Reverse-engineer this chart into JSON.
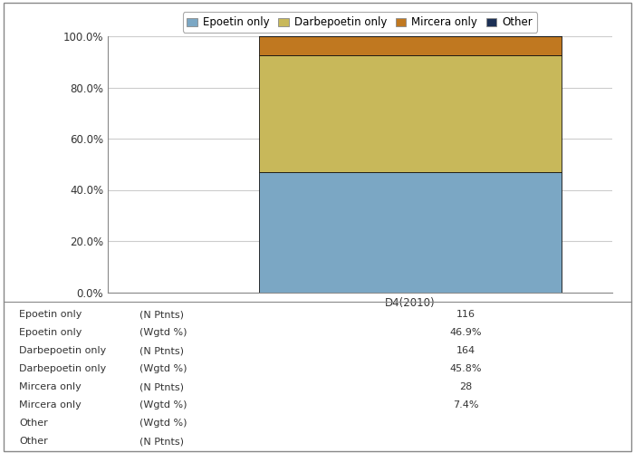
{
  "categories": [
    "D4(2010)"
  ],
  "series": [
    {
      "label": "Epoetin only",
      "color": "#7BA7C4",
      "value": 46.9
    },
    {
      "label": "Darbepoetin only",
      "color": "#C8B85A",
      "value": 45.8
    },
    {
      "label": "Mircera only",
      "color": "#C07820",
      "value": 7.4
    },
    {
      "label": "Other",
      "color": "#1C3055",
      "value": 0.3
    }
  ],
  "ylim": [
    0,
    100
  ],
  "yticks": [
    0,
    20,
    40,
    60,
    80,
    100
  ],
  "ytick_labels": [
    "0.0%",
    "20.0%",
    "40.0%",
    "60.0%",
    "80.0%",
    "100.0%"
  ],
  "bar_width": 0.6,
  "table_rows": [
    {
      "label": "Epoetin only",
      "sublabel": "(N Ptnts)",
      "value": "116"
    },
    {
      "label": "Epoetin only",
      "sublabel": "(Wgtd %)",
      "value": "46.9%"
    },
    {
      "label": "Darbepoetin only",
      "sublabel": "(N Ptnts)",
      "value": "164"
    },
    {
      "label": "Darbepoetin only",
      "sublabel": "(Wgtd %)",
      "value": "45.8%"
    },
    {
      "label": "Mircera only",
      "sublabel": "(N Ptnts)",
      "value": "28"
    },
    {
      "label": "Mircera only",
      "sublabel": "(Wgtd %)",
      "value": "7.4%"
    },
    {
      "label": "Other",
      "sublabel": "(Wgtd %)",
      "value": ""
    },
    {
      "label": "Other",
      "sublabel": "(N Ptnts)",
      "value": ""
    }
  ],
  "legend_entries": [
    "Epoetin only",
    "Darbepoetin only",
    "Mircera only",
    "Other"
  ],
  "legend_colors": [
    "#7BA7C4",
    "#C8B85A",
    "#C07820",
    "#1C3055"
  ],
  "bg_color": "#FFFFFF",
  "grid_color": "#CCCCCC",
  "axis_label_color": "#333333",
  "font_size": 8.5
}
